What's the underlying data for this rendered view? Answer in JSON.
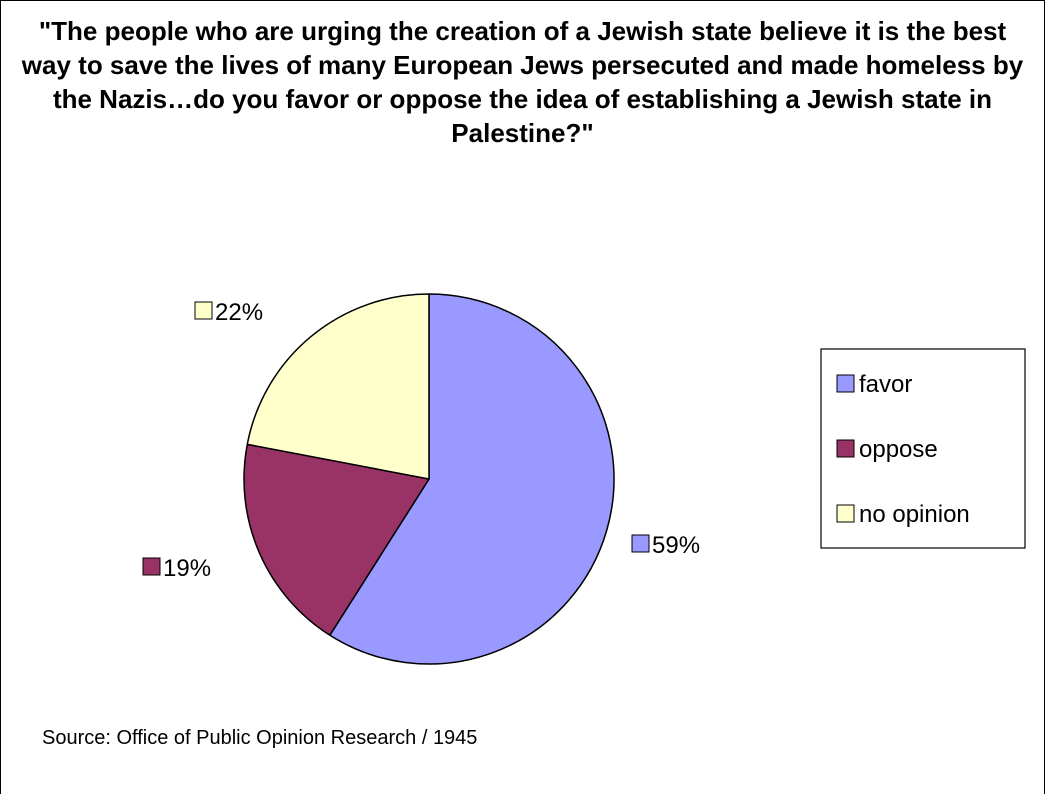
{
  "chart_data": {
    "type": "pie",
    "title": "\"The people who are urging the creation of a Jewish state believe it is the best way to save the lives of many European Jews persecuted and made homeless by the Nazis…do you favor or oppose the idea of establishing a Jewish state in Palestine?\"",
    "categories": [
      "favor",
      "oppose",
      "no opinion"
    ],
    "values": [
      59,
      19,
      22
    ],
    "labels": [
      "59%",
      "19%",
      "22%"
    ],
    "colors": [
      "#9999ff",
      "#993366",
      "#ffffcc"
    ],
    "legend": {
      "position": "right",
      "entries": [
        "favor",
        "oppose",
        "no opinion"
      ]
    },
    "start": "12 o'clock, clockwise",
    "source": "Source: Office of Public Opinion Research / 1945"
  }
}
